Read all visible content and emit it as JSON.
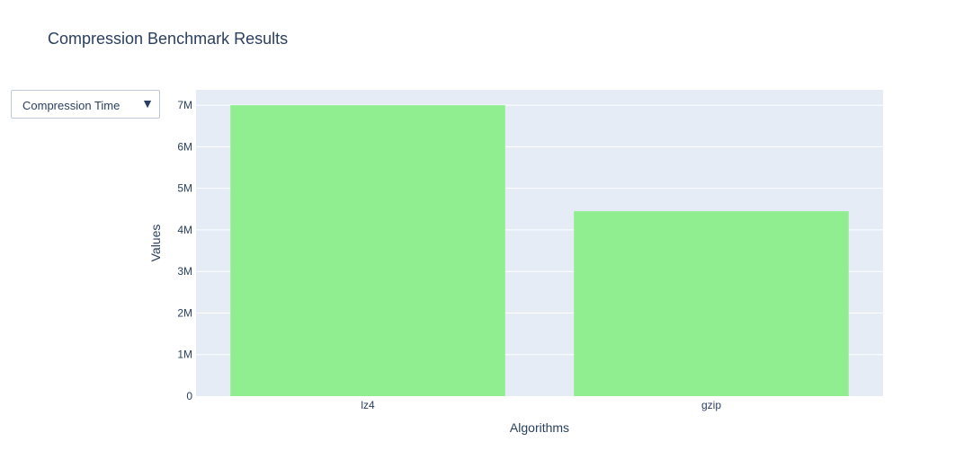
{
  "title": "Compression Benchmark Results",
  "dropdown": {
    "selected": "Compression Time",
    "arrow_icon": "triangle-down-icon"
  },
  "colors": {
    "plot_background": "#e5ecf6",
    "bar": "#90ee90",
    "gridline": "#ffffff",
    "text": "#2a3f5f"
  },
  "chart_data": {
    "type": "bar",
    "title": "Compression Benchmark Results",
    "xlabel": "Algorithms",
    "ylabel": "Values",
    "categories": [
      "lz4",
      "gzip"
    ],
    "values": [
      7000000,
      4450000
    ],
    "ylim": [
      0,
      7370000
    ],
    "yticks": [
      0,
      1000000,
      2000000,
      3000000,
      4000000,
      5000000,
      6000000,
      7000000
    ],
    "ytick_labels": [
      "0",
      "1M",
      "2M",
      "3M",
      "4M",
      "5M",
      "6M",
      "7M"
    ],
    "grid": true,
    "legend": "none"
  }
}
